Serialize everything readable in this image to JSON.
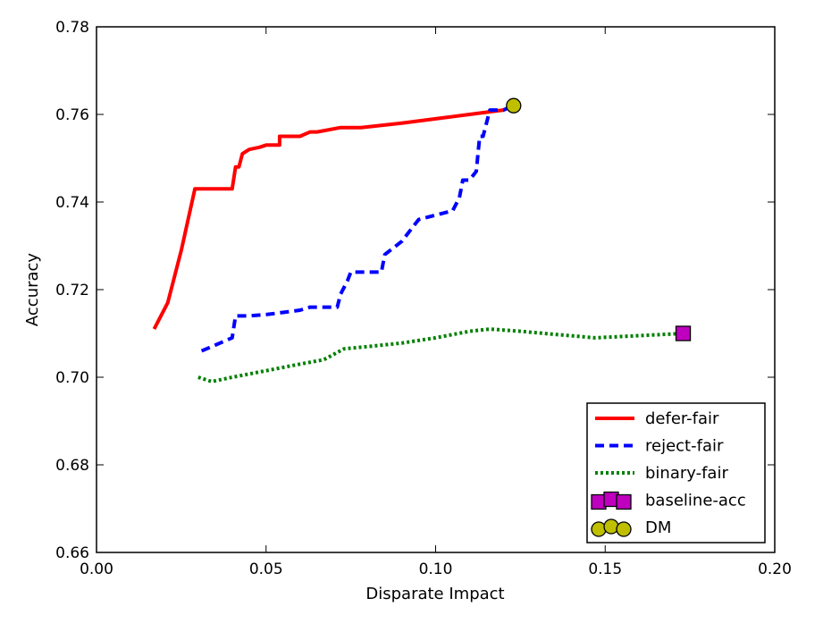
{
  "chart_data": {
    "type": "line",
    "title": "",
    "xlabel": "Disparate Impact",
    "ylabel": "Accuracy",
    "xlim": [
      0.0,
      0.2
    ],
    "ylim": [
      0.66,
      0.78
    ],
    "xticks": [
      "0.00",
      "0.05",
      "0.10",
      "0.15",
      "0.20"
    ],
    "yticks": [
      "0.66",
      "0.68",
      "0.70",
      "0.72",
      "0.74",
      "0.76",
      "0.78"
    ],
    "grid": false,
    "legend_position": "lower-right",
    "series": [
      {
        "name": "defer-fair",
        "style": "solid",
        "color": "#ff0000",
        "points": [
          [
            0.017,
            0.711
          ],
          [
            0.021,
            0.717
          ],
          [
            0.025,
            0.729
          ],
          [
            0.029,
            0.743
          ],
          [
            0.033,
            0.743
          ],
          [
            0.04,
            0.743
          ],
          [
            0.041,
            0.748
          ],
          [
            0.042,
            0.748
          ],
          [
            0.043,
            0.751
          ],
          [
            0.045,
            0.752
          ],
          [
            0.048,
            0.7525
          ],
          [
            0.05,
            0.753
          ],
          [
            0.054,
            0.753
          ],
          [
            0.054,
            0.755
          ],
          [
            0.06,
            0.755
          ],
          [
            0.063,
            0.756
          ],
          [
            0.065,
            0.756
          ],
          [
            0.072,
            0.757
          ],
          [
            0.078,
            0.757
          ],
          [
            0.09,
            0.758
          ],
          [
            0.1,
            0.759
          ],
          [
            0.11,
            0.76
          ],
          [
            0.12,
            0.761
          ],
          [
            0.123,
            0.762
          ]
        ]
      },
      {
        "name": "reject-fair",
        "style": "dashed",
        "color": "#0000ff",
        "points": [
          [
            0.031,
            0.706
          ],
          [
            0.034,
            0.707
          ],
          [
            0.037,
            0.708
          ],
          [
            0.04,
            0.709
          ],
          [
            0.041,
            0.714
          ],
          [
            0.045,
            0.714
          ],
          [
            0.05,
            0.7143
          ],
          [
            0.055,
            0.7148
          ],
          [
            0.06,
            0.7153
          ],
          [
            0.063,
            0.716
          ],
          [
            0.07,
            0.716
          ],
          [
            0.071,
            0.716
          ],
          [
            0.072,
            0.719
          ],
          [
            0.074,
            0.722
          ],
          [
            0.075,
            0.724
          ],
          [
            0.08,
            0.724
          ],
          [
            0.084,
            0.724
          ],
          [
            0.085,
            0.728
          ],
          [
            0.09,
            0.731
          ],
          [
            0.095,
            0.736
          ],
          [
            0.1,
            0.737
          ],
          [
            0.105,
            0.738
          ],
          [
            0.107,
            0.741
          ],
          [
            0.108,
            0.745
          ],
          [
            0.11,
            0.745
          ],
          [
            0.112,
            0.747
          ],
          [
            0.113,
            0.755
          ],
          [
            0.114,
            0.755
          ],
          [
            0.116,
            0.761
          ],
          [
            0.12,
            0.761
          ],
          [
            0.123,
            0.762
          ]
        ]
      },
      {
        "name": "binary-fair",
        "style": "dotted",
        "color": "#008000",
        "points": [
          [
            0.03,
            0.7
          ],
          [
            0.034,
            0.699
          ],
          [
            0.04,
            0.7
          ],
          [
            0.05,
            0.7015
          ],
          [
            0.06,
            0.703
          ],
          [
            0.067,
            0.704
          ],
          [
            0.073,
            0.7065
          ],
          [
            0.08,
            0.707
          ],
          [
            0.09,
            0.7078
          ],
          [
            0.1,
            0.709
          ],
          [
            0.11,
            0.7105
          ],
          [
            0.116,
            0.711
          ],
          [
            0.125,
            0.7105
          ],
          [
            0.135,
            0.7098
          ],
          [
            0.147,
            0.709
          ],
          [
            0.16,
            0.7095
          ],
          [
            0.173,
            0.71
          ]
        ]
      }
    ],
    "markers": [
      {
        "name": "baseline-acc",
        "shape": "square",
        "color": "#bf00bf",
        "x": 0.173,
        "y": 0.71
      },
      {
        "name": "DM",
        "shape": "circle",
        "color": "#bfbf00",
        "x": 0.123,
        "y": 0.762
      }
    ]
  }
}
